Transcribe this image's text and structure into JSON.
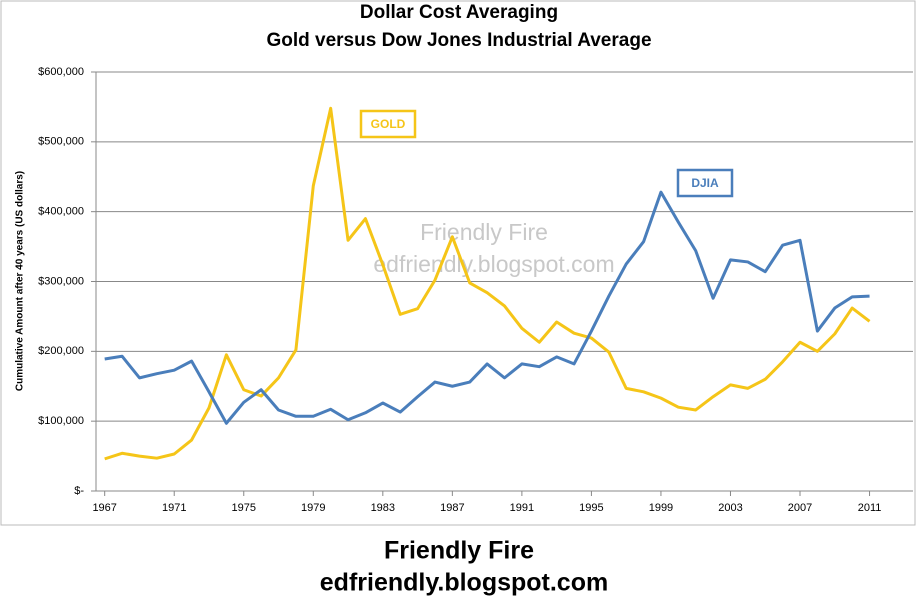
{
  "chart_data": {
    "type": "line",
    "title": "Dollar Cost Averaging",
    "subtitle": "Gold versus Dow Jones Industrial Average",
    "ylabel": "Cumulative Amount after 40 years  (US dollars)",
    "watermark": [
      "Friendly Fire",
      "edfriendly.blogspot.com"
    ],
    "footer": [
      "Friendly Fire",
      "edfriendly.blogspot.com"
    ],
    "x": [
      1967,
      1968,
      1969,
      1970,
      1971,
      1972,
      1973,
      1974,
      1975,
      1976,
      1977,
      1978,
      1979,
      1980,
      1981,
      1982,
      1983,
      1984,
      1985,
      1986,
      1987,
      1988,
      1989,
      1990,
      1991,
      1992,
      1993,
      1994,
      1995,
      1996,
      1997,
      1998,
      1999,
      2000,
      2001,
      2002,
      2003,
      2004,
      2005,
      2006,
      2007,
      2008,
      2009,
      2010,
      2011
    ],
    "xlim": [
      1966.5,
      2013.5
    ],
    "xticks": [
      1967,
      1971,
      1975,
      1979,
      1983,
      1987,
      1991,
      1995,
      1999,
      2003,
      2007,
      2011
    ],
    "ylim": [
      0,
      600000
    ],
    "yticks": [
      {
        "value": 0,
        "label": "$-"
      },
      {
        "value": 100000,
        "label": "$100,000"
      },
      {
        "value": 200000,
        "label": "$200,000"
      },
      {
        "value": 300000,
        "label": "$300,000"
      },
      {
        "value": 400000,
        "label": "$400,000"
      },
      {
        "value": 500000,
        "label": "$500,000"
      },
      {
        "value": 600000,
        "label": "$600,000"
      }
    ],
    "grid": true,
    "series": [
      {
        "name": "GOLD",
        "color": "#f5c518",
        "values": [
          46000,
          54000,
          50000,
          47000,
          53000,
          73000,
          119000,
          195000,
          145000,
          136000,
          162000,
          202000,
          437000,
          548000,
          359000,
          390000,
          324000,
          253000,
          261000,
          302000,
          364000,
          298000,
          284000,
          265000,
          233000,
          213000,
          242000,
          226000,
          219000,
          199000,
          147000,
          142000,
          133000,
          120000,
          116000,
          135000,
          152000,
          147000,
          160000,
          185000,
          213000,
          200000,
          225000,
          262000,
          243000
        ]
      },
      {
        "name": "DJIA",
        "color": "#4a7ebb",
        "values": [
          189000,
          193000,
          162000,
          168000,
          173000,
          186000,
          142000,
          97000,
          127000,
          145000,
          116000,
          107000,
          107000,
          117000,
          102000,
          112000,
          126000,
          113000,
          135000,
          156000,
          150000,
          156000,
          182000,
          162000,
          182000,
          178000,
          192000,
          182000,
          229000,
          279000,
          325000,
          357000,
          428000,
          385000,
          344000,
          276000,
          331000,
          328000,
          314000,
          352000,
          359000,
          229000,
          262000,
          278000,
          279000
        ]
      }
    ]
  }
}
